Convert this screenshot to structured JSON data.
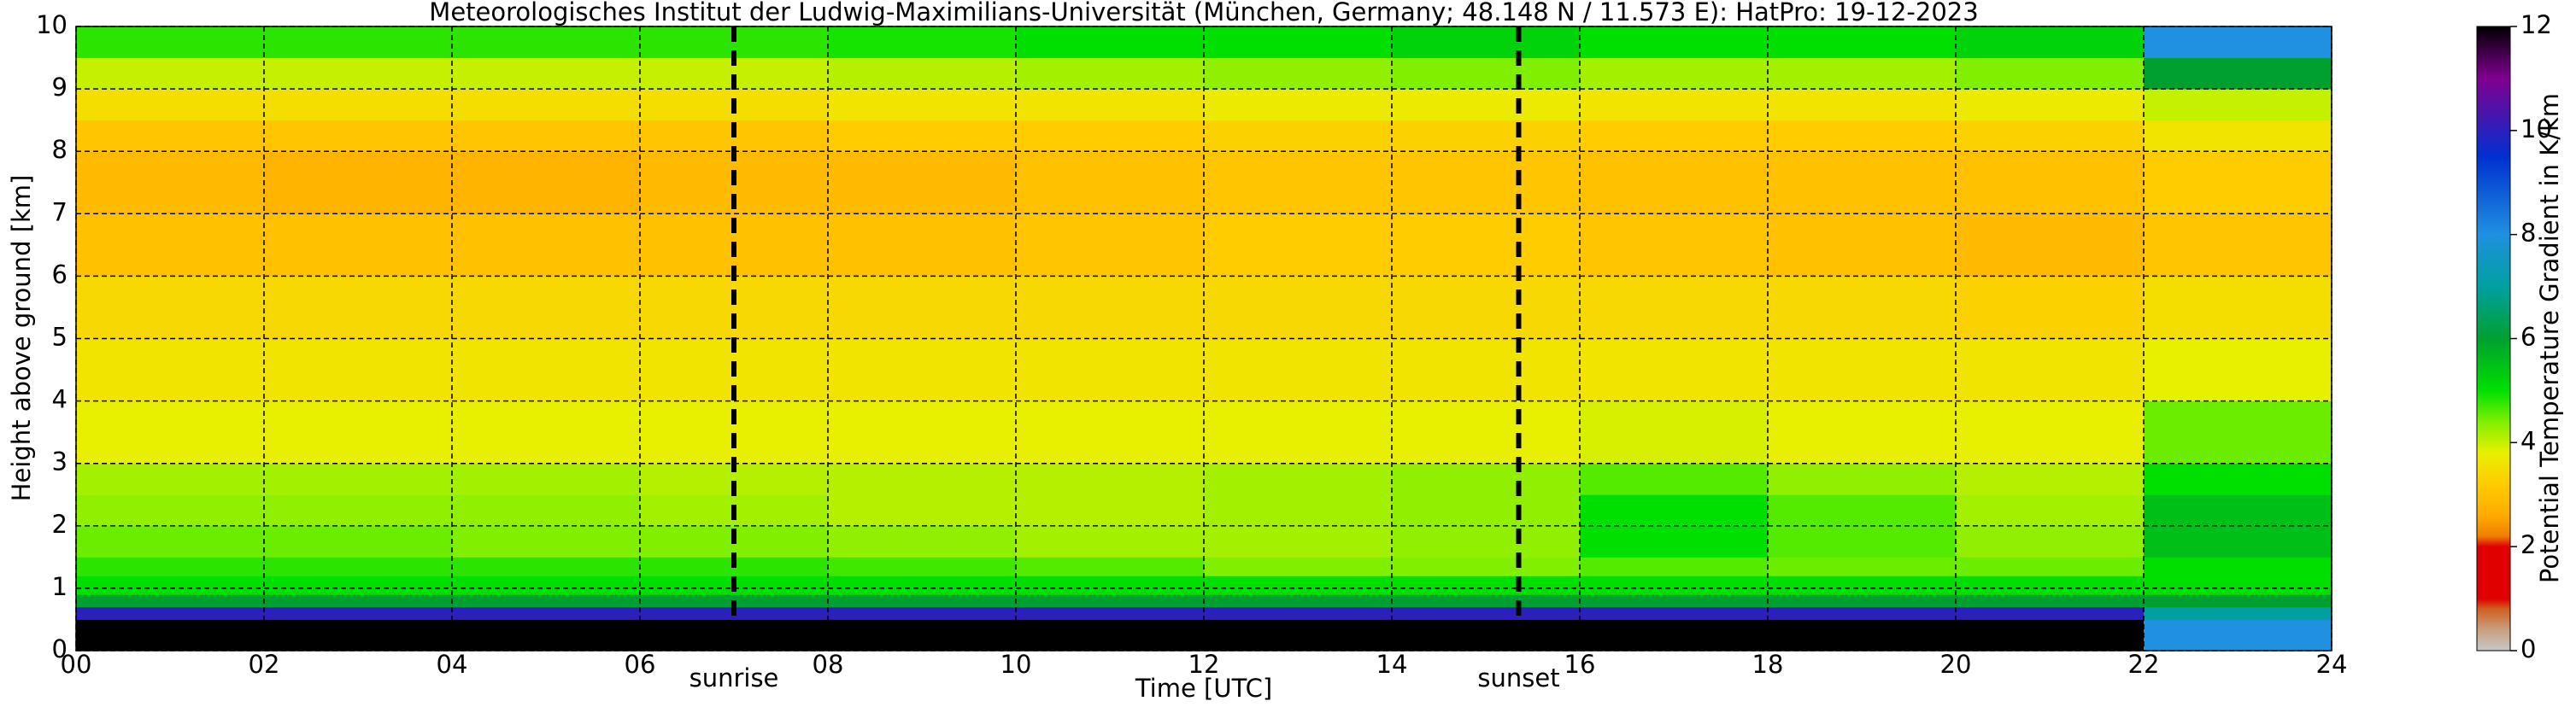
{
  "chart_data": {
    "type": "heatmap",
    "title": "Meteorologisches Institut der Ludwig-Maximilians-Universität (München, Germany; 48.148 N / 11.573 E):    HatPro: 19-12-2023",
    "x_label": "Time [UTC]",
    "y_label": "Height above ground [km]",
    "colorbar_label": "Potential Temperature Gradient in K/km",
    "x": [
      0,
      2,
      4,
      6,
      8,
      10,
      12,
      14,
      16,
      18,
      20,
      22,
      24
    ],
    "y": [
      0,
      0.5,
      0.7,
      0.9,
      1.2,
      1.5,
      2,
      2.5,
      3,
      4,
      5,
      6,
      7,
      8,
      8.5,
      9,
      9.5,
      10
    ],
    "values": [
      [
        12,
        12,
        12,
        12,
        12,
        12,
        12,
        12,
        12,
        12,
        12,
        8
      ],
      [
        10,
        10,
        10,
        10,
        10,
        10,
        10,
        10,
        10,
        10,
        10,
        7
      ],
      [
        6,
        6,
        6,
        6,
        6,
        6,
        6,
        6,
        6,
        6,
        6,
        6
      ],
      [
        5,
        5,
        5,
        5,
        5,
        5,
        5,
        5,
        5,
        5,
        5,
        5
      ],
      [
        4.8,
        4.8,
        4.8,
        4.8,
        4.7,
        4.6,
        4.4,
        4.4,
        4.6,
        4.5,
        4.5,
        5
      ],
      [
        4.5,
        4.5,
        4.4,
        4.4,
        4.3,
        4.2,
        4.2,
        4.3,
        5,
        4.6,
        4.3,
        5.5
      ],
      [
        4.3,
        4.3,
        4.3,
        4.2,
        4.1,
        4.1,
        4.2,
        4.3,
        5,
        4.6,
        4.2,
        5.5
      ],
      [
        4.2,
        4.2,
        4.2,
        4.1,
        4.1,
        4.1,
        4.2,
        4.3,
        4.6,
        4.3,
        4.1,
        5
      ],
      [
        3.8,
        3.8,
        3.8,
        3.8,
        3.8,
        3.8,
        3.8,
        3.8,
        3.9,
        3.8,
        3.8,
        4.5
      ],
      [
        3.6,
        3.6,
        3.6,
        3.6,
        3.6,
        3.6,
        3.6,
        3.6,
        3.6,
        3.6,
        3.6,
        3.8
      ],
      [
        3.4,
        3.4,
        3.4,
        3.4,
        3.4,
        3.4,
        3.4,
        3.4,
        3.4,
        3.4,
        3.3,
        3.5
      ],
      [
        3.0,
        3.0,
        3.0,
        3.0,
        3.0,
        3.1,
        3.2,
        3.2,
        3.1,
        3.0,
        2.9,
        3.1
      ],
      [
        2.9,
        2.8,
        2.8,
        2.9,
        2.9,
        3.0,
        3.1,
        3.1,
        3.0,
        3.0,
        3.0,
        3.2
      ],
      [
        3.1,
        3.1,
        3.1,
        3.1,
        3.2,
        3.2,
        3.3,
        3.3,
        3.2,
        3.2,
        3.3,
        3.6
      ],
      [
        3.5,
        3.5,
        3.5,
        3.5,
        3.6,
        3.6,
        3.7,
        3.7,
        3.6,
        3.6,
        3.7,
        4
      ],
      [
        4,
        4,
        4,
        4,
        4.1,
        4.2,
        4.3,
        4.4,
        4.2,
        4.2,
        4.4,
        6
      ],
      [
        4.8,
        4.8,
        4.8,
        4.8,
        4.9,
        5,
        5,
        5.2,
        5,
        5,
        5.2,
        8
      ]
    ],
    "xlim": [
      0,
      24
    ],
    "ylim": [
      0,
      10
    ],
    "xticks": [
      {
        "value": 0,
        "label": "00"
      },
      {
        "value": 2,
        "label": "02"
      },
      {
        "value": 4,
        "label": "04"
      },
      {
        "value": 6,
        "label": "06"
      },
      {
        "value": 8,
        "label": "08"
      },
      10,
      12,
      14,
      16,
      18,
      20,
      22,
      24
    ],
    "yticks": [
      0,
      1,
      2,
      3,
      4,
      5,
      6,
      7,
      8,
      9,
      10
    ],
    "clim": [
      0,
      12
    ],
    "cticks": [
      0,
      2,
      4,
      6,
      8,
      10,
      12
    ],
    "grid": true,
    "colorscale": [
      [
        0,
        "#c8c8c8"
      ],
      [
        0.4,
        "#c8a080"
      ],
      [
        0.8,
        "#d06020"
      ],
      [
        1,
        "#e00000"
      ],
      [
        2,
        "#e00000"
      ],
      [
        2.2,
        "#f08000"
      ],
      [
        2.6,
        "#ffaa00"
      ],
      [
        3.2,
        "#ffcc00"
      ],
      [
        3.8,
        "#e8f000"
      ],
      [
        4.4,
        "#80f000"
      ],
      [
        5,
        "#00e000"
      ],
      [
        6,
        "#00a030"
      ],
      [
        7,
        "#00a0a0"
      ],
      [
        8,
        "#2090e0"
      ],
      [
        9.5,
        "#0030d0"
      ],
      [
        11,
        "#800090"
      ],
      [
        12,
        "#000000"
      ]
    ],
    "annotations": [
      {
        "x": 7.0,
        "label": "sunrise"
      },
      {
        "x": 15.35,
        "label": "sunset"
      }
    ]
  }
}
